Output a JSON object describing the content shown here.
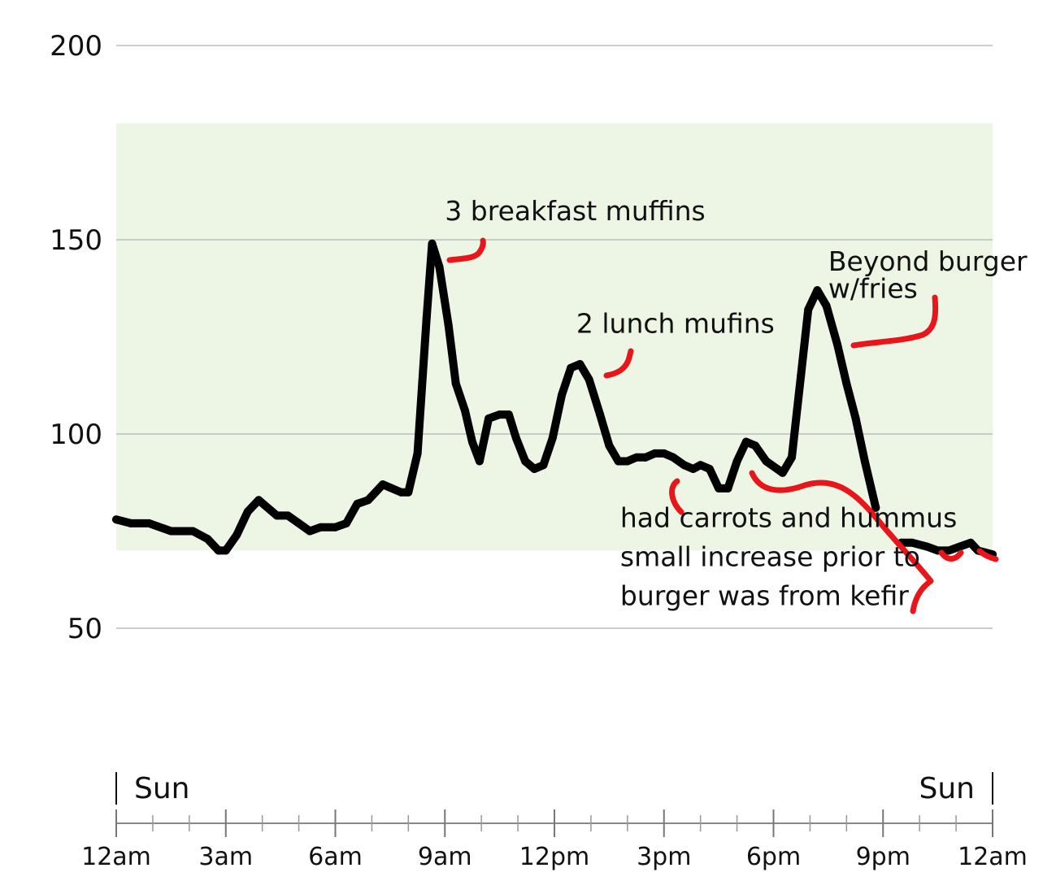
{
  "chart_data": {
    "type": "line",
    "title": "",
    "xlabel": "",
    "ylabel": "",
    "ylim": [
      30,
      210
    ],
    "yticks": [
      200,
      150,
      100,
      50
    ],
    "target_range": [
      70,
      180
    ],
    "xlim": [
      0,
      24
    ],
    "x_tick_labels": [
      "12am",
      "3am",
      "6am",
      "9am",
      "12pm",
      "3pm",
      "6pm",
      "9pm",
      "12am"
    ],
    "day_labels": {
      "start": "Sun",
      "end": "Sun"
    },
    "grid": true,
    "colors": {
      "line": "#000000",
      "band": "#edf5e5",
      "grid": "#bbbbbb",
      "marker": "#e8161b"
    },
    "series": [
      {
        "values": [
          [
            0.0,
            78
          ],
          [
            0.4,
            77
          ],
          [
            0.9,
            77
          ],
          [
            1.5,
            75
          ],
          [
            2.1,
            75
          ],
          [
            2.5,
            73
          ],
          [
            2.8,
            70
          ],
          [
            3.0,
            70
          ],
          [
            3.3,
            74
          ],
          [
            3.6,
            80
          ],
          [
            3.9,
            83
          ],
          [
            4.4,
            79
          ],
          [
            4.7,
            79
          ],
          [
            5.0,
            77
          ],
          [
            5.3,
            75
          ],
          [
            5.6,
            76
          ],
          [
            6.0,
            76
          ],
          [
            6.3,
            77
          ],
          [
            6.6,
            82
          ],
          [
            6.9,
            83
          ],
          [
            7.3,
            87
          ],
          [
            7.8,
            85
          ],
          [
            8.0,
            85
          ],
          [
            8.25,
            95
          ],
          [
            8.5,
            130
          ],
          [
            8.65,
            149
          ],
          [
            8.85,
            143
          ],
          [
            9.1,
            128
          ],
          [
            9.3,
            113
          ],
          [
            9.55,
            106
          ],
          [
            9.75,
            98
          ],
          [
            9.95,
            93
          ],
          [
            10.2,
            104
          ],
          [
            10.5,
            105
          ],
          [
            10.75,
            105
          ],
          [
            10.95,
            99
          ],
          [
            11.2,
            93
          ],
          [
            11.45,
            91
          ],
          [
            11.7,
            92
          ],
          [
            11.95,
            99
          ],
          [
            12.2,
            110
          ],
          [
            12.45,
            117
          ],
          [
            12.7,
            118
          ],
          [
            12.95,
            114
          ],
          [
            13.25,
            105
          ],
          [
            13.5,
            97
          ],
          [
            13.75,
            93
          ],
          [
            14.0,
            93
          ],
          [
            14.25,
            94
          ],
          [
            14.5,
            94
          ],
          [
            14.75,
            95
          ],
          [
            15.0,
            95
          ],
          [
            15.25,
            94
          ],
          [
            15.55,
            92
          ],
          [
            15.8,
            91
          ],
          [
            16.0,
            92
          ],
          [
            16.25,
            91
          ],
          [
            16.5,
            86
          ],
          [
            16.75,
            86
          ],
          [
            17.0,
            93
          ],
          [
            17.25,
            98
          ],
          [
            17.5,
            97
          ],
          [
            17.8,
            93
          ],
          [
            18.1,
            91
          ],
          [
            18.25,
            90
          ],
          [
            18.5,
            94
          ],
          [
            18.75,
            115
          ],
          [
            18.95,
            132
          ],
          [
            19.2,
            137
          ],
          [
            19.45,
            133
          ],
          [
            19.75,
            123
          ],
          [
            20.0,
            113
          ],
          [
            20.25,
            104
          ],
          [
            20.5,
            93
          ],
          [
            20.8,
            81
          ]
        ]
      },
      {
        "values": [
          [
            21.5,
            72
          ],
          [
            21.8,
            72
          ],
          [
            22.2,
            71
          ],
          [
            22.5,
            70
          ],
          [
            22.8,
            70
          ],
          [
            23.1,
            71
          ],
          [
            23.4,
            72
          ],
          [
            23.6,
            70
          ],
          [
            24.0,
            69
          ]
        ]
      }
    ],
    "annotations": [
      {
        "text": "3 breakfast muffins",
        "x": 9.0,
        "y": 155
      },
      {
        "text": "2 lunch mufins",
        "x": 12.6,
        "y": 126
      },
      {
        "text": "Beyond burger",
        "x": 19.5,
        "y": 142
      },
      {
        "text": "w/fries",
        "x": 19.5,
        "y": 135
      },
      {
        "text": "had carrots and hummus",
        "x": 13.8,
        "y": 76
      },
      {
        "text": "small increase prior to",
        "x": 13.8,
        "y": 66
      },
      {
        "text": "burger was from kefir",
        "x": 13.8,
        "y": 56
      }
    ]
  }
}
